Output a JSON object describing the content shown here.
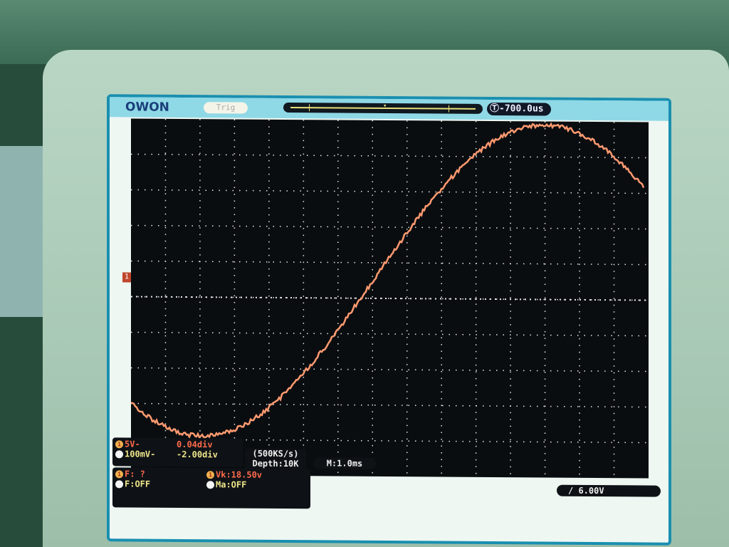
{
  "brand": "OWON",
  "trigger_status": "Trig",
  "trigger_offset": "-700.0us",
  "channel_marker": "1",
  "ch1": {
    "volts_div": "5V-",
    "position": "0.04div"
  },
  "ch2": {
    "volts_div": "100mV-",
    "position": "-2.00div"
  },
  "sampling": {
    "rate": "(500KS/s)",
    "depth": "Depth:10K"
  },
  "timebase": "M:1.0ms",
  "freq1": "F:  ?",
  "freq2": "F:OFF",
  "measure1": "Vk:18.50v",
  "measure2": "Ma:OFF",
  "trigger_level": "6.00V",
  "colors": {
    "trace": "#ff9a70",
    "grid": "#e8e8e8",
    "screen_border": "#1a8fb0",
    "ch1": "#f0b050"
  }
}
